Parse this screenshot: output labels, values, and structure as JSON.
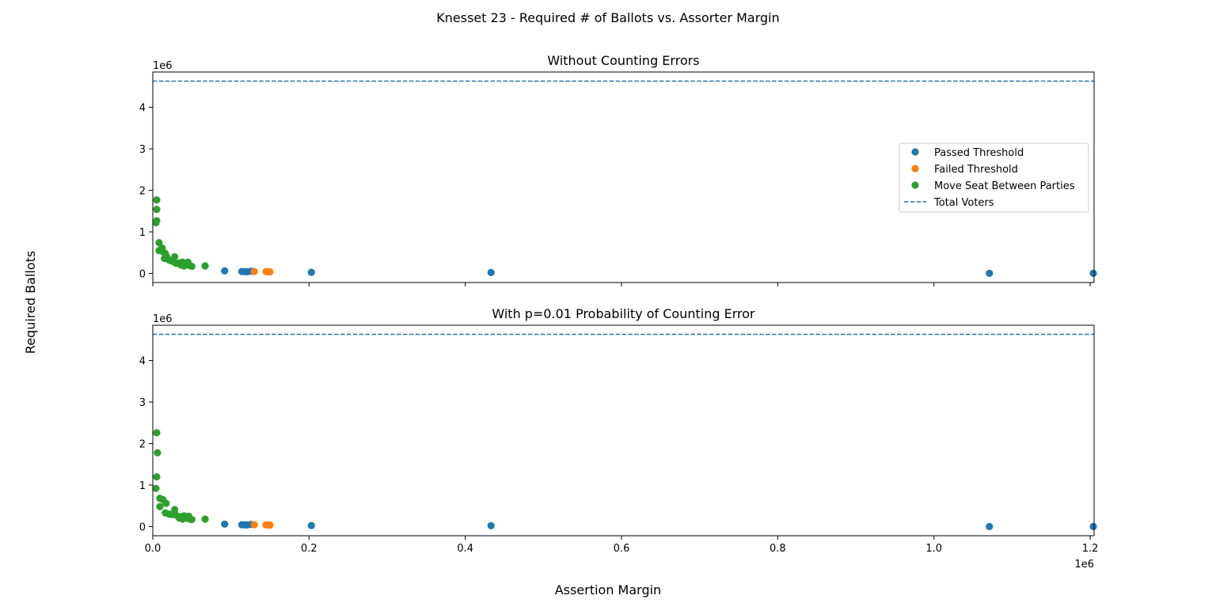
{
  "figure": {
    "suptitle": "Knesset 23 - Required # of Ballots vs. Assorter Margin",
    "xlabel": "Assertion Margin",
    "ylabel": "Required Ballots",
    "x_offset_label": "1e6",
    "y_offset_label": "1e6"
  },
  "colors": {
    "passed": "#1f77b4",
    "failed": "#ff7f0e",
    "move": "#2ca02c",
    "total": "#1f77b4"
  },
  "legend": {
    "placement": "center-right",
    "items": [
      {
        "key": "passed",
        "label": "Passed Threshold",
        "kind": "marker"
      },
      {
        "key": "failed",
        "label": "Failed Threshold",
        "kind": "marker"
      },
      {
        "key": "move",
        "label": "Move Seat Between Parties",
        "kind": "marker"
      },
      {
        "key": "total",
        "label": "Total Voters",
        "kind": "dashed-line"
      }
    ]
  },
  "chart_data": [
    {
      "type": "scatter",
      "title": "Without Counting Errors",
      "xlim": [
        0,
        1205000
      ],
      "ylim": [
        -220000,
        4850000
      ],
      "x_ticks": [
        0,
        200000,
        400000,
        600000,
        800000,
        1000000,
        1200000
      ],
      "x_tick_labels": [],
      "y_ticks": [
        0,
        1000000,
        2000000,
        3000000,
        4000000
      ],
      "y_tick_labels": [
        "0",
        "1",
        "2",
        "3",
        "4"
      ],
      "total_voters": 4630000,
      "series": [
        {
          "key": "passed",
          "name": "Passed Threshold",
          "points": [
            [
              92000,
              60000
            ],
            [
              114000,
              45000
            ],
            [
              118000,
              42000
            ],
            [
              121000,
              40000
            ],
            [
              126000,
              52000
            ],
            [
              203000,
              25000
            ],
            [
              433000,
              20000
            ],
            [
              1071000,
              2000
            ],
            [
              1204000,
              1000
            ]
          ]
        },
        {
          "key": "failed",
          "name": "Failed Threshold",
          "points": [
            [
              130000,
              45000
            ],
            [
              145000,
              42000
            ],
            [
              148000,
              40000
            ],
            [
              150000,
              38000
            ]
          ]
        },
        {
          "key": "move",
          "name": "Move Seat Between Parties",
          "points": [
            [
              5000,
              1770000
            ],
            [
              5000,
              1540000
            ],
            [
              5000,
              1270000
            ],
            [
              4000,
              1220000
            ],
            [
              8000,
              740000
            ],
            [
              8000,
              550000
            ],
            [
              12000,
              610000
            ],
            [
              13000,
              520000
            ],
            [
              16000,
              480000
            ],
            [
              15000,
              360000
            ],
            [
              18000,
              400000
            ],
            [
              21000,
              320000
            ],
            [
              24000,
              300000
            ],
            [
              27000,
              280000
            ],
            [
              28000,
              400000
            ],
            [
              30000,
              240000
            ],
            [
              34000,
              250000
            ],
            [
              36000,
              200000
            ],
            [
              38000,
              270000
            ],
            [
              40000,
              180000
            ],
            [
              42000,
              230000
            ],
            [
              44000,
              210000
            ],
            [
              45000,
              270000
            ],
            [
              47000,
              190000
            ],
            [
              50000,
              170000
            ],
            [
              67000,
              180000
            ]
          ]
        }
      ]
    },
    {
      "type": "scatter",
      "title": "With p=0.01 Probability of Counting Error",
      "xlim": [
        0,
        1205000
      ],
      "ylim": [
        -220000,
        4850000
      ],
      "x_ticks": [
        0,
        200000,
        400000,
        600000,
        800000,
        1000000,
        1200000
      ],
      "x_tick_labels": [
        "0.0",
        "0.2",
        "0.4",
        "0.6",
        "0.8",
        "1.0",
        "1.2"
      ],
      "y_ticks": [
        0,
        1000000,
        2000000,
        3000000,
        4000000
      ],
      "y_tick_labels": [
        "0",
        "1",
        "2",
        "3",
        "4"
      ],
      "total_voters": 4630000,
      "series": [
        {
          "key": "passed",
          "name": "Passed Threshold",
          "points": [
            [
              92000,
              60000
            ],
            [
              114000,
              45000
            ],
            [
              118000,
              42000
            ],
            [
              121000,
              40000
            ],
            [
              126000,
              52000
            ],
            [
              203000,
              25000
            ],
            [
              433000,
              22000
            ],
            [
              1071000,
              2000
            ],
            [
              1204000,
              1000
            ]
          ]
        },
        {
          "key": "failed",
          "name": "Failed Threshold",
          "points": [
            [
              130000,
              45000
            ],
            [
              145000,
              42000
            ],
            [
              148000,
              40000
            ],
            [
              150000,
              38000
            ]
          ]
        },
        {
          "key": "move",
          "name": "Move Seat Between Parties",
          "points": [
            [
              5000,
              2260000
            ],
            [
              6000,
              1780000
            ],
            [
              5000,
              1200000
            ],
            [
              4000,
              920000
            ],
            [
              9000,
              680000
            ],
            [
              9000,
              480000
            ],
            [
              13000,
              650000
            ],
            [
              17000,
              560000
            ],
            [
              16000,
              330000
            ],
            [
              21000,
              300000
            ],
            [
              24000,
              290000
            ],
            [
              28000,
              410000
            ],
            [
              30000,
              270000
            ],
            [
              34000,
              210000
            ],
            [
              36000,
              240000
            ],
            [
              38000,
              180000
            ],
            [
              40000,
              260000
            ],
            [
              42000,
              220000
            ],
            [
              44000,
              200000
            ],
            [
              46000,
              250000
            ],
            [
              48000,
              180000
            ],
            [
              50000,
              170000
            ],
            [
              67000,
              180000
            ]
          ]
        }
      ]
    }
  ]
}
